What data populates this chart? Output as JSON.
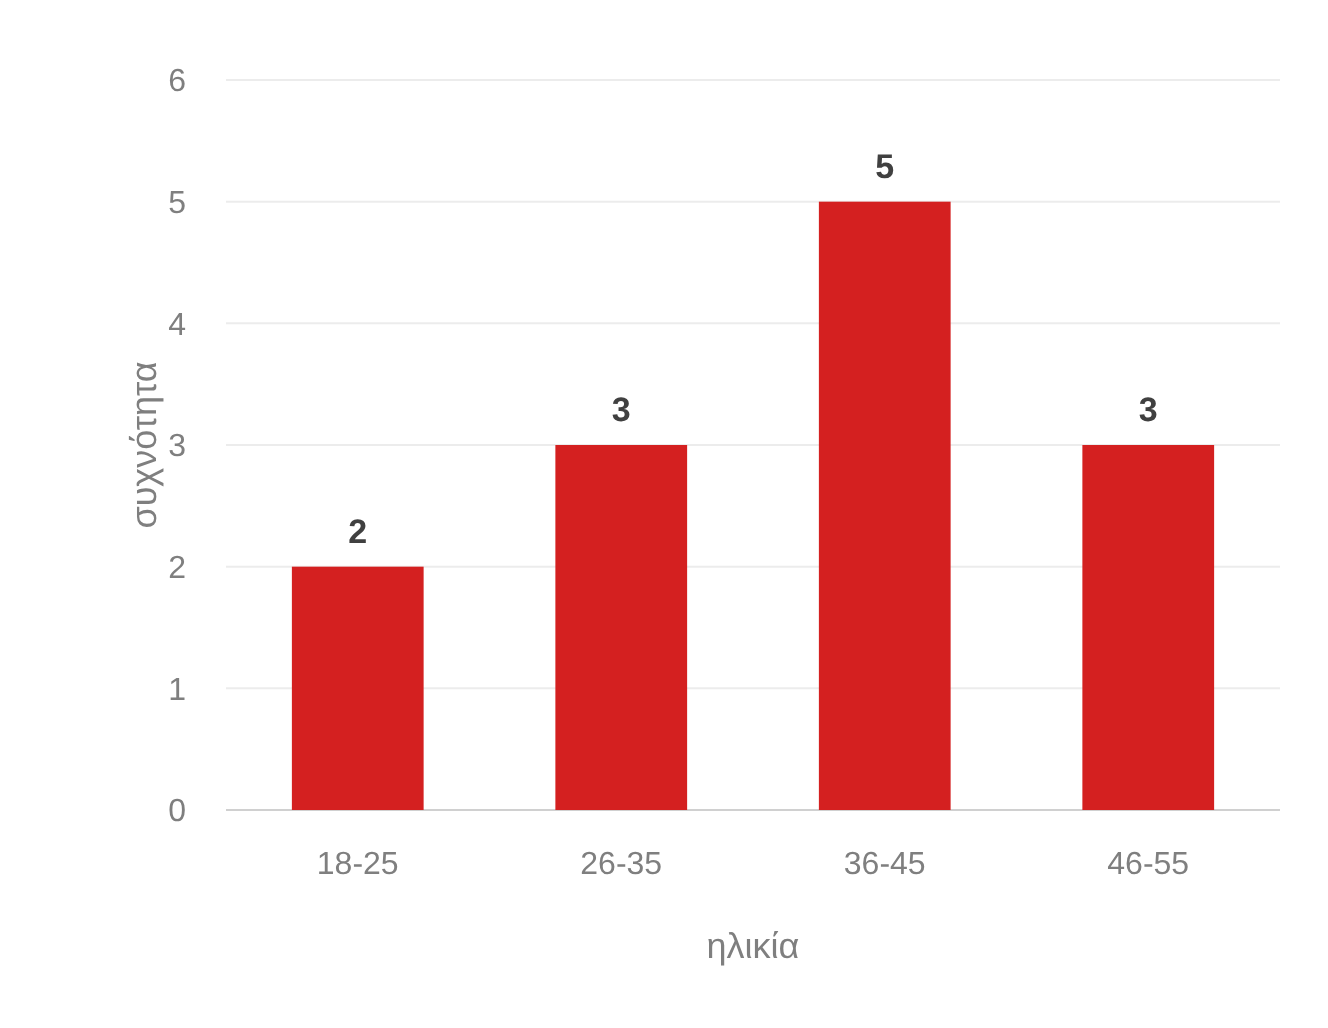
{
  "chart_data": {
    "type": "bar",
    "xlabel": "ηλικία",
    "ylabel": "συχνότητα",
    "categories": [
      "18-25",
      "26-35",
      "36-45",
      "46-55"
    ],
    "values": [
      2,
      3,
      5,
      3
    ],
    "color": "#d42020",
    "ylim": [
      0,
      6
    ],
    "yticks": [
      0,
      1,
      2,
      3,
      4,
      5,
      6
    ],
    "grid": "y",
    "data_labels": true
  }
}
